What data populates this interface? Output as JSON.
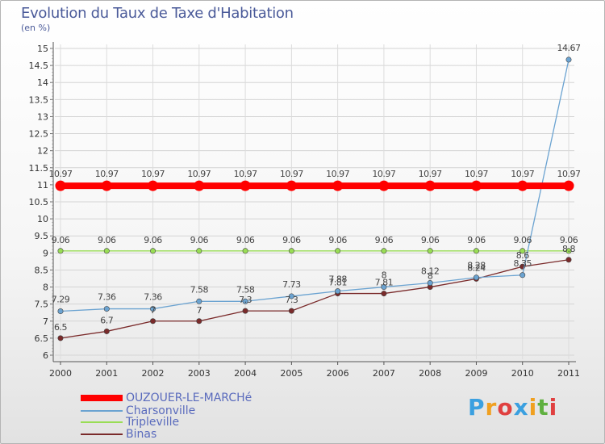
{
  "chart_data": {
    "type": "line",
    "title": "Evolution du Taux de Taxe d'Habitation",
    "unit_label": "(en %)",
    "xlabel": "",
    "ylabel": "",
    "x": [
      "2000",
      "2001",
      "2002",
      "2003",
      "2004",
      "2005",
      "2006",
      "2007",
      "2008",
      "2009",
      "2010",
      "2011"
    ],
    "ylim": [
      6,
      15
    ],
    "yticks": [
      "6",
      "6.5",
      "7",
      "7.5",
      "8",
      "8.5",
      "9",
      "9.5",
      "10",
      "10.5",
      "11",
      "11.5",
      "12",
      "12.5",
      "13",
      "13.5",
      "14",
      "14.5",
      "15"
    ],
    "grid": true,
    "series": [
      {
        "name": "OUZOUER-LE-MARCHé",
        "color": "#ff0000",
        "values": [
          10.97,
          10.97,
          10.97,
          10.97,
          10.97,
          10.97,
          10.97,
          10.97,
          10.97,
          10.97,
          10.97,
          10.97
        ],
        "labels": [
          "10.97",
          "10.97",
          "10.97",
          "10.97",
          "10.97",
          "10.97",
          "10.97",
          "10.97",
          "10.97",
          "10.97",
          "10.97",
          "10.97"
        ]
      },
      {
        "name": "Charsonville",
        "color": "#6ba3d1",
        "values": [
          7.29,
          7.36,
          7.36,
          7.58,
          7.58,
          7.73,
          7.88,
          8,
          8.12,
          8.28,
          8.35,
          14.67
        ],
        "labels": [
          "7.29",
          "7.36",
          "7.36",
          "7.58",
          "7.58",
          "7.73",
          "7.88",
          "8",
          "8.12",
          "8.28",
          "8.35",
          "14.67"
        ]
      },
      {
        "name": "Tripleville",
        "color": "#99dd55",
        "values": [
          9.06,
          9.06,
          9.06,
          9.06,
          9.06,
          9.06,
          9.06,
          9.06,
          9.06,
          9.06,
          9.06,
          9.06
        ],
        "labels": [
          "9.06",
          "9.06",
          "9.06",
          "9.06",
          "9.06",
          "9.06",
          "9.06",
          "9.06",
          "9.06",
          "9.06",
          "9.06",
          "9.06"
        ]
      },
      {
        "name": "Binas",
        "color": "#7a2a2a",
        "values": [
          6.5,
          6.7,
          7,
          7,
          7.3,
          7.3,
          7.81,
          7.81,
          8,
          8.24,
          8.6,
          8.8
        ],
        "labels": [
          "6.5",
          "6.7",
          "7",
          "7",
          "7.3",
          "7.3",
          "7.81",
          "7.81",
          "8",
          "8.24",
          "8.6",
          "8.8"
        ]
      }
    ]
  },
  "logo": {
    "letters": [
      "P",
      "r",
      "o",
      "x",
      "i",
      "t",
      "i"
    ],
    "colors": [
      "#3ba0e0",
      "#f0a020",
      "#e04040",
      "#3ba0e0",
      "#f0a020",
      "#60b040",
      "#e04040"
    ]
  }
}
